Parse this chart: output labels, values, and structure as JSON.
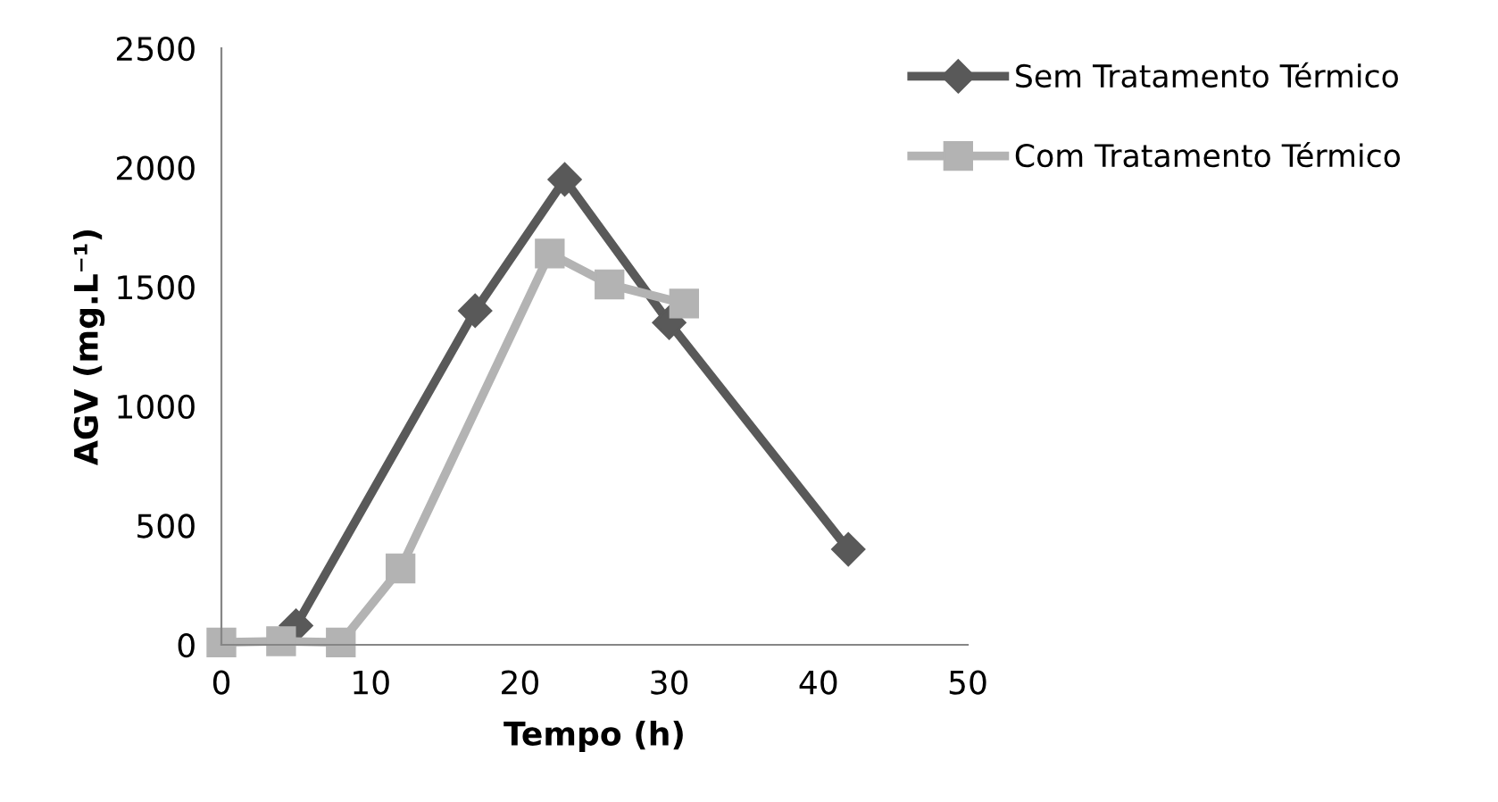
{
  "chart_data": {
    "type": "line",
    "xlabel": "Tempo (h)",
    "ylabel": "AGV (mg.L⁻¹)",
    "xlim": [
      0,
      50
    ],
    "xticks": [
      0,
      10,
      20,
      30,
      40,
      50
    ],
    "ylim": [
      0,
      2500
    ],
    "yticks": [
      0,
      500,
      1000,
      1500,
      2000,
      2500
    ],
    "grid": false,
    "legend": "top right",
    "line_style": "solid",
    "series": [
      {
        "name": "Sem Tratamento Térmico",
        "color": "#595959",
        "marker": "diamond",
        "x": [
          5,
          17,
          23,
          30,
          42
        ],
        "values": [
          80,
          1400,
          1950,
          1350,
          400
        ]
      },
      {
        "name": "Com Tratamento Térmico",
        "color": "#b3b3b3",
        "marker": "square",
        "x": [
          0,
          4,
          8,
          12,
          22,
          26,
          31
        ],
        "values": [
          10,
          15,
          10,
          320,
          1640,
          1510,
          1430
        ]
      }
    ]
  }
}
